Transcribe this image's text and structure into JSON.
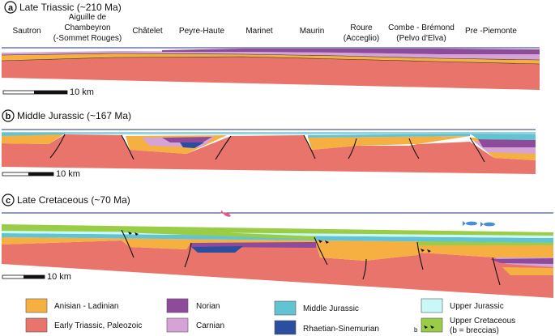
{
  "panels": {
    "a": {
      "letter": "a",
      "title": "Late Triassic (~210 Ma)",
      "scale": "10 km",
      "localities": [
        {
          "line1": "Sautron",
          "line2": "",
          "line3": ""
        },
        {
          "line1": "Aiguille de",
          "line2": "Chambeyron",
          "line3": "(-Sommet Rouges)"
        },
        {
          "line1": "Châtelet",
          "line2": "",
          "line3": ""
        },
        {
          "line1": "Peyre-Haute",
          "line2": "",
          "line3": ""
        },
        {
          "line1": "Marinet",
          "line2": "",
          "line3": ""
        },
        {
          "line1": "Maurin",
          "line2": "",
          "line3": ""
        },
        {
          "line1": "Roure",
          "line2": "(Acceglio)",
          "line3": ""
        },
        {
          "line1": "Combe - Brémond",
          "line2": "(Pelvo d'Elva)",
          "line3": ""
        },
        {
          "line1": "Pre -Piemonte",
          "line2": "",
          "line3": ""
        }
      ]
    },
    "b": {
      "letter": "b",
      "title": "Middle Jurassic (~167 Ma)",
      "scale": "10 km"
    },
    "c": {
      "letter": "c",
      "title": "Late Cretaceous (~70 Ma)",
      "scale": "10 km"
    }
  },
  "legend": [
    {
      "label": "Anisian - Ladinian",
      "color": "#f5b041",
      "icon": "swatch"
    },
    {
      "label": "Early Triassic, Paleozoic",
      "color": "#e9746c",
      "icon": "swatch"
    },
    {
      "label": "Norian",
      "color": "#8e4b9b",
      "icon": "swatch"
    },
    {
      "label": "Carnian",
      "color": "#d6a3d6",
      "icon": "swatch"
    },
    {
      "label": "Middle Jurassic",
      "color": "#62c3d3",
      "icon": "swatch"
    },
    {
      "label": "Rhaetian-Sinemurian",
      "color": "#2a4f9e",
      "icon": "swatch"
    },
    {
      "label": "Upper Jurassic",
      "color": "#c8f8f8",
      "icon": "swatch"
    },
    {
      "label": "Upper Cretaceous",
      "label2": "(b = breccias)",
      "prefix": "b",
      "color": "#9acd45",
      "icon": "breccia-swatch"
    }
  ],
  "colors": {
    "basement": "#e9746c",
    "anisian": "#f5b041",
    "carnian": "#d6a3d6",
    "norian": "#8e4b9b",
    "rhaetian": "#2a4f9e",
    "middle_jurassic": "#62c3d3",
    "upper_jurassic": "#c8f8f8",
    "upper_cretaceous": "#9acd45",
    "sea_level": "#27337a"
  }
}
